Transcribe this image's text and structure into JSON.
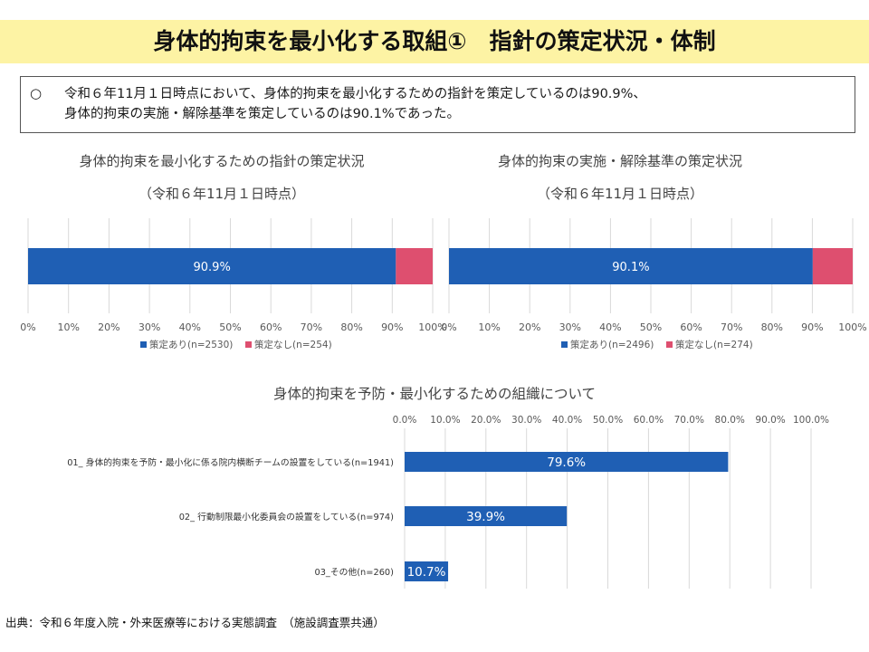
{
  "header": {
    "title": "身体的拘束を最小化する取組①　指針の策定状況・体制"
  },
  "summary": {
    "bullet": "○",
    "line1": "令和６年11月１日時点において、身体的拘束を最小化するための指針を策定しているのは90.9%、",
    "line2": "身体的拘束の実施・解除基準を策定しているのは90.1%であった。"
  },
  "footnote": "出典：令和６年度入院・外来医療等における実態調査　（施設調査票共通）",
  "colors": {
    "yes": "#1f5fb4",
    "no": "#de4f6f",
    "grid": "#d9d9d9",
    "axis": "#595959"
  },
  "chart_data": [
    {
      "type": "bar",
      "orientation": "horizontal-stacked-100",
      "title": "身体的拘束を最小化するための指針の策定状況",
      "subtitle": "（令和６年11月１日時点）",
      "series": [
        {
          "name": "策定あり(n=2530)",
          "values": [
            90.9
          ],
          "label": "90.9%"
        },
        {
          "name": "策定なし(n=254)",
          "values": [
            9.1
          ]
        }
      ],
      "xticks": [
        "0%",
        "10%",
        "20%",
        "30%",
        "40%",
        "50%",
        "60%",
        "70%",
        "80%",
        "90%",
        "100%"
      ],
      "xlim": [
        0,
        100
      ],
      "legend": "bottom"
    },
    {
      "type": "bar",
      "orientation": "horizontal-stacked-100",
      "title": "身体的拘束の実施・解除基準の策定状況",
      "subtitle": "（令和６年11月１日時点）",
      "series": [
        {
          "name": "策定あり(n=2496)",
          "values": [
            90.1
          ],
          "label": "90.1%"
        },
        {
          "name": "策定なし(n=274)",
          "values": [
            9.9
          ]
        }
      ],
      "xticks": [
        "0%",
        "10%",
        "20%",
        "30%",
        "40%",
        "50%",
        "60%",
        "70%",
        "80%",
        "90%",
        "100%"
      ],
      "xlim": [
        0,
        100
      ],
      "legend": "bottom"
    },
    {
      "type": "bar",
      "orientation": "horizontal",
      "title": "身体的拘束を予防・最小化するための組織について",
      "categories": [
        "01_ 身体的拘束を予防・最小化に係る院内横断チームの設置をしている(n=1941)",
        "02_ 行動制限最小化委員会の設置をしている(n=974)",
        "03_その他(n=260)"
      ],
      "values": [
        79.6,
        39.9,
        10.7
      ],
      "labels": [
        "79.6%",
        "39.9%",
        "10.7%"
      ],
      "xticks": [
        "0.0%",
        "10.0%",
        "20.0%",
        "30.0%",
        "40.0%",
        "50.0%",
        "60.0%",
        "70.0%",
        "80.0%",
        "90.0%",
        "100.0%"
      ],
      "xlim": [
        0,
        100
      ],
      "xaxis_position": "top"
    }
  ]
}
